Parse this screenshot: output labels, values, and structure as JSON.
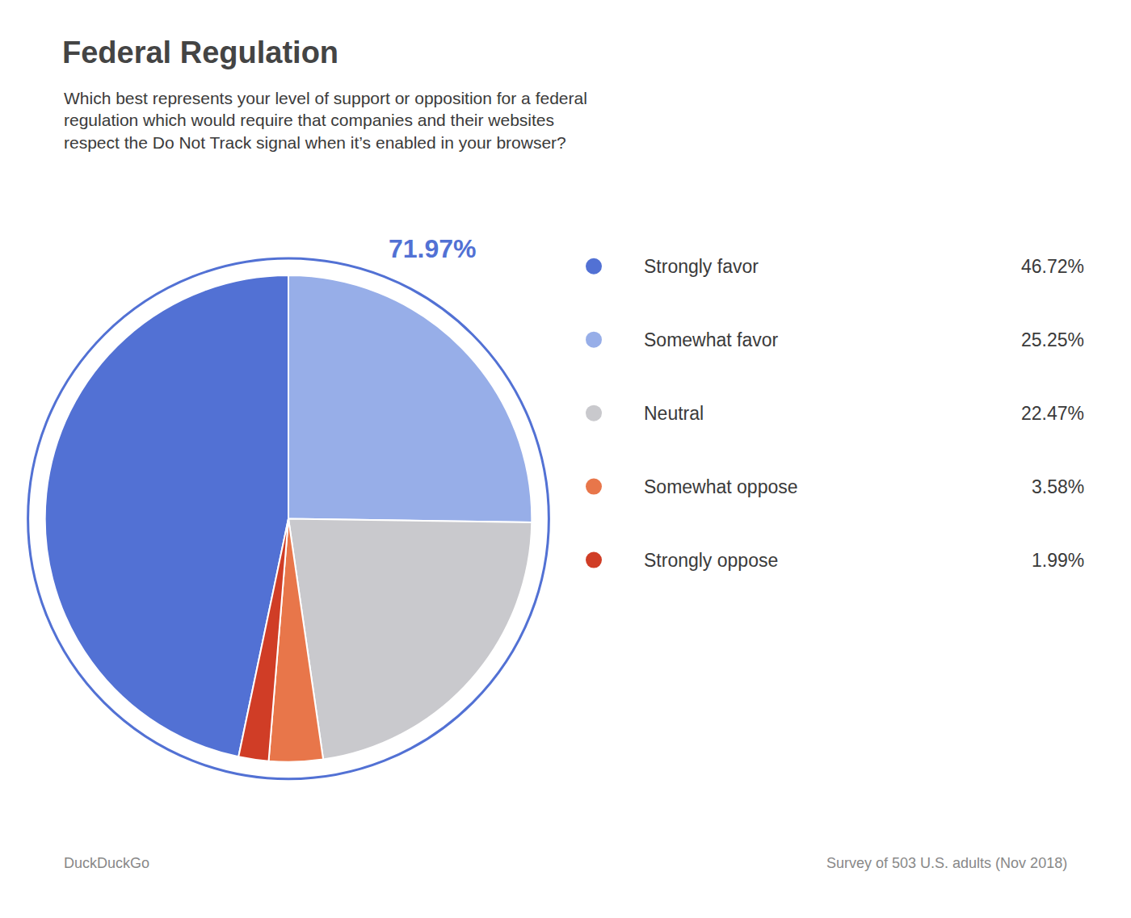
{
  "chart_data": {
    "type": "pie",
    "title": "Federal Regulation",
    "subtitle": [
      "Which best represents your level of support or opposition for a federal",
      "regulation which would require that companies and their websites",
      "respect the Do Not Track signal when it’s enabled in your browser?"
    ],
    "categories": [
      "Strongly favor",
      "Somewhat favor",
      "Neutral",
      "Somewhat oppose",
      "Strongly oppose"
    ],
    "values": [
      46.72,
      25.25,
      22.47,
      3.58,
      1.99
    ],
    "value_labels": [
      "46.72%",
      "25.25%",
      "22.47%",
      "3.58%",
      "1.99%"
    ],
    "colors": [
      "#5271d4",
      "#97aee8",
      "#c9c9cd",
      "#e8764a",
      "#d03d26"
    ],
    "annotations": [
      {
        "text": "71.97%",
        "color": "#5271d4"
      }
    ],
    "footer": [
      "DuckDuckGo",
      "Survey of 503 U.S. adults (Nov 2018)"
    ],
    "legend": "right"
  }
}
